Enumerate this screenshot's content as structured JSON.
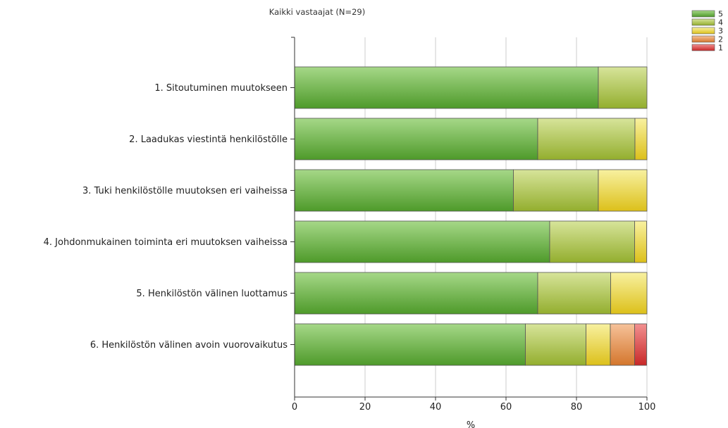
{
  "chart_data": {
    "type": "bar",
    "orientation": "horizontal",
    "stacked": true,
    "title": "Kaikki vastaajat (N=29)",
    "xlabel": "%",
    "ylabel": "",
    "xlim": [
      0,
      100
    ],
    "xticks": [
      "0",
      "20",
      "40",
      "60",
      "80",
      "100"
    ],
    "grid": true,
    "legend_position": "top-right",
    "categories": [
      "1. Sitoutuminen muutokseen",
      "2. Laadukas viestintä henkilöstölle",
      "3. Tuki henkilöstölle muutoksen eri vaiheissa",
      "4. Johdonmukainen toiminta eri muutoksen vaiheissa",
      "5. Henkilöstön välinen luottamus",
      "6. Henkilöstön välinen avoin vuorovaikutus"
    ],
    "series": [
      {
        "name": "5",
        "color": "#6aaa3c",
        "values": [
          86.2,
          69.0,
          62.1,
          72.4,
          69.0,
          65.5
        ]
      },
      {
        "name": "4",
        "color": "#b4c85a",
        "values": [
          13.8,
          27.6,
          24.1,
          24.1,
          20.7,
          17.2
        ]
      },
      {
        "name": "3",
        "color": "#ece05a",
        "values": [
          0,
          3.4,
          13.8,
          3.4,
          10.3,
          6.9
        ]
      },
      {
        "name": "2",
        "color": "#e8955a",
        "values": [
          0,
          0,
          0,
          0,
          0,
          6.9
        ]
      },
      {
        "name": "1",
        "color": "#dc4848",
        "values": [
          0,
          0,
          0,
          0,
          0,
          3.4
        ]
      }
    ]
  }
}
